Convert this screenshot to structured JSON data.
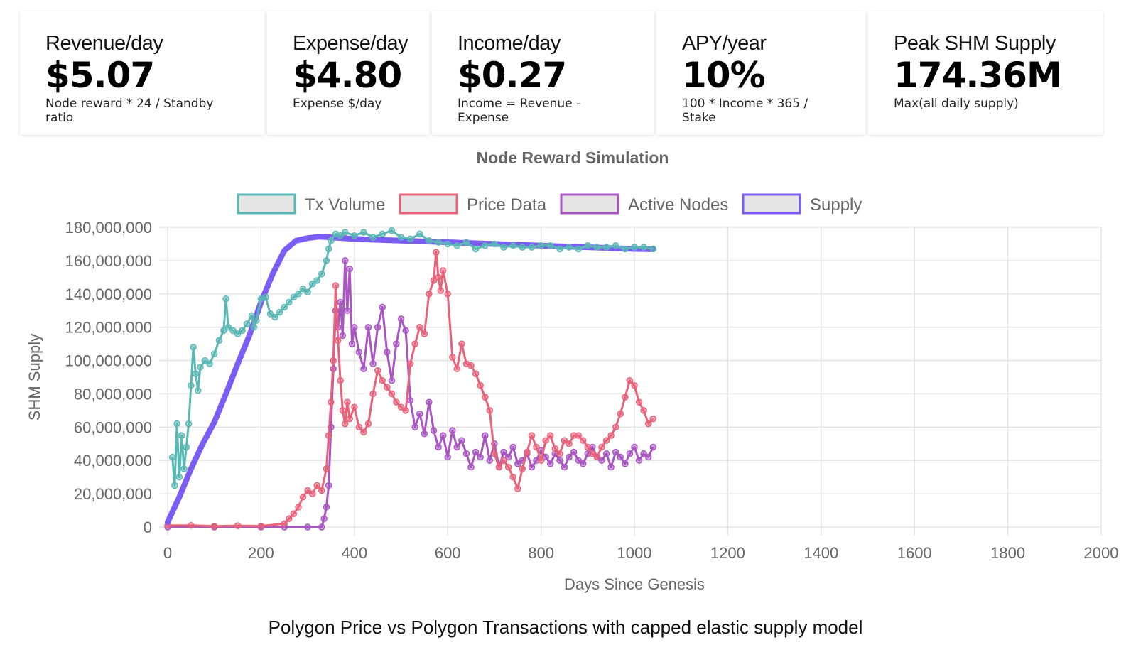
{
  "stats": [
    {
      "title": "Revenue/day",
      "value": "$5.07",
      "note": "Node reward * 24 / Standby ratio"
    },
    {
      "title": "Expense/day",
      "value": "$4.80",
      "note": "Expense $/day"
    },
    {
      "title": "Income/day",
      "value": "$0.27",
      "note": "Income = Revenue - Expense"
    },
    {
      "title": "APY/year",
      "value": "10%",
      "note": "100 * Income * 365 / Stake"
    },
    {
      "title": "Peak SHM Supply",
      "value": "174.36M",
      "note": "Max(all daily supply)"
    }
  ],
  "caption": "Polygon Price vs Polygon Transactions with capped elastic supply model",
  "colors": {
    "tx_volume": "#5ab8b4",
    "price_data": "#e8627a",
    "active_nodes": "#a956c2",
    "supply": "#7b5cf5",
    "grid": "#e2e2e2",
    "axis_text": "#666666"
  },
  "chart_data": {
    "type": "line",
    "title": "Node Reward Simulation",
    "xlabel": "Days Since Genesis",
    "ylabel": "SHM Supply",
    "xlim": [
      0,
      2000
    ],
    "ylim": [
      0,
      180000000
    ],
    "x_ticks": [
      0,
      200,
      400,
      600,
      800,
      1000,
      1200,
      1400,
      1600,
      1800,
      2000
    ],
    "x_tick_labels": [
      "0",
      "200",
      "400",
      "600",
      "800",
      "1000",
      "1200",
      "1400",
      "1600",
      "1800",
      "2000"
    ],
    "y_ticks": [
      0,
      20000000,
      40000000,
      60000000,
      80000000,
      100000000,
      120000000,
      140000000,
      160000000,
      180000000
    ],
    "y_tick_labels": [
      "0",
      "20,000,000",
      "40,000,000",
      "60,000,000",
      "80,000,000",
      "100,000,000",
      "120,000,000",
      "140,000,000",
      "160,000,000",
      "180,000,000"
    ],
    "grid": true,
    "legend_position": "top",
    "series": [
      {
        "name": "Tx Volume",
        "color_key": "tx_volume",
        "style": "line-markers",
        "x": [
          10,
          15,
          20,
          25,
          30,
          35,
          40,
          45,
          50,
          55,
          60,
          65,
          70,
          80,
          90,
          100,
          110,
          120,
          125,
          130,
          140,
          150,
          160,
          170,
          180,
          185,
          190,
          200,
          210,
          220,
          230,
          240,
          250,
          260,
          270,
          280,
          290,
          300,
          310,
          320,
          330,
          340,
          345,
          350,
          360,
          370,
          380,
          400,
          420,
          440,
          460,
          480,
          500,
          520,
          540,
          560,
          580,
          600,
          620,
          640,
          660,
          680,
          700,
          720,
          740,
          760,
          780,
          800,
          820,
          840,
          860,
          880,
          900,
          920,
          940,
          960,
          980,
          1000,
          1020,
          1040
        ],
        "y": [
          42000000,
          25000000,
          62000000,
          30000000,
          55000000,
          35000000,
          48000000,
          62000000,
          85000000,
          108000000,
          92000000,
          82000000,
          96000000,
          100000000,
          98000000,
          104000000,
          112000000,
          118000000,
          137000000,
          120000000,
          118000000,
          116000000,
          118000000,
          122000000,
          127000000,
          120000000,
          124000000,
          137000000,
          138000000,
          128000000,
          126000000,
          129000000,
          132000000,
          135000000,
          138000000,
          140000000,
          143000000,
          141000000,
          146000000,
          148000000,
          152000000,
          160000000,
          167000000,
          172000000,
          176000000,
          175000000,
          177000000,
          175000000,
          177000000,
          174000000,
          176000000,
          178000000,
          174000000,
          173000000,
          176000000,
          172000000,
          171000000,
          170000000,
          169000000,
          171000000,
          167000000,
          169000000,
          170000000,
          168000000,
          169000000,
          168000000,
          168000000,
          169000000,
          169000000,
          167000000,
          168000000,
          167000000,
          169000000,
          168000000,
          168000000,
          169000000,
          167000000,
          168000000,
          168000000,
          167000000
        ]
      },
      {
        "name": "Price Data",
        "color_key": "price_data",
        "style": "line-markers",
        "x": [
          0,
          50,
          100,
          150,
          200,
          250,
          260,
          270,
          280,
          290,
          300,
          310,
          320,
          330,
          340,
          345,
          350,
          355,
          360,
          365,
          370,
          375,
          380,
          385,
          390,
          400,
          410,
          420,
          430,
          440,
          450,
          460,
          470,
          480,
          490,
          500,
          510,
          520,
          530,
          540,
          550,
          560,
          570,
          575,
          580,
          585,
          590,
          600,
          610,
          620,
          630,
          640,
          650,
          660,
          670,
          680,
          690,
          700,
          710,
          720,
          730,
          740,
          750,
          760,
          770,
          780,
          790,
          800,
          810,
          820,
          830,
          840,
          850,
          860,
          870,
          880,
          890,
          900,
          910,
          920,
          930,
          940,
          950,
          960,
          970,
          980,
          990,
          1000,
          1010,
          1020,
          1030,
          1040
        ],
        "y": [
          1000000,
          1000000,
          500000,
          800000,
          600000,
          2000000,
          5000000,
          8000000,
          12000000,
          18000000,
          22000000,
          20000000,
          25000000,
          22000000,
          35000000,
          55000000,
          75000000,
          100000000,
          145000000,
          112000000,
          88000000,
          70000000,
          62000000,
          75000000,
          65000000,
          72000000,
          60000000,
          57000000,
          62000000,
          80000000,
          94000000,
          88000000,
          84000000,
          80000000,
          75000000,
          72000000,
          70000000,
          98000000,
          110000000,
          120000000,
          116000000,
          140000000,
          148000000,
          165000000,
          150000000,
          142000000,
          154000000,
          140000000,
          102000000,
          95000000,
          110000000,
          98000000,
          97000000,
          92000000,
          85000000,
          78000000,
          70000000,
          44000000,
          36000000,
          40000000,
          36000000,
          30000000,
          23000000,
          35000000,
          45000000,
          55000000,
          48000000,
          40000000,
          52000000,
          55000000,
          47000000,
          44000000,
          52000000,
          50000000,
          55000000,
          55000000,
          52000000,
          48000000,
          44000000,
          42000000,
          48000000,
          52000000,
          55000000,
          60000000,
          68000000,
          78000000,
          88000000,
          85000000,
          75000000,
          70000000,
          62000000,
          65000000
        ]
      },
      {
        "name": "Active Nodes",
        "color_key": "active_nodes",
        "style": "line-markers",
        "x": [
          0,
          100,
          200,
          250,
          300,
          330,
          335,
          340,
          345,
          350,
          355,
          360,
          365,
          370,
          375,
          380,
          385,
          390,
          395,
          400,
          410,
          420,
          430,
          440,
          450,
          460,
          470,
          480,
          490,
          500,
          510,
          520,
          530,
          540,
          550,
          560,
          570,
          580,
          590,
          600,
          610,
          620,
          630,
          640,
          650,
          660,
          670,
          680,
          690,
          700,
          710,
          720,
          730,
          740,
          750,
          760,
          770,
          780,
          790,
          800,
          810,
          820,
          830,
          840,
          850,
          860,
          870,
          880,
          890,
          900,
          910,
          920,
          930,
          940,
          950,
          960,
          970,
          980,
          990,
          1000,
          1010,
          1020,
          1030,
          1040
        ],
        "y": [
          0,
          0,
          0,
          0,
          0,
          0,
          5000000,
          12000000,
          25000000,
          60000000,
          95000000,
          130000000,
          120000000,
          135000000,
          115000000,
          160000000,
          130000000,
          155000000,
          110000000,
          120000000,
          105000000,
          95000000,
          120000000,
          98000000,
          120000000,
          132000000,
          105000000,
          88000000,
          110000000,
          125000000,
          118000000,
          76000000,
          60000000,
          68000000,
          56000000,
          75000000,
          58000000,
          48000000,
          55000000,
          42000000,
          58000000,
          48000000,
          52000000,
          44000000,
          36000000,
          45000000,
          42000000,
          55000000,
          40000000,
          50000000,
          36000000,
          45000000,
          42000000,
          48000000,
          38000000,
          40000000,
          44000000,
          36000000,
          40000000,
          46000000,
          42000000,
          38000000,
          44000000,
          40000000,
          36000000,
          42000000,
          45000000,
          40000000,
          38000000,
          44000000,
          48000000,
          42000000,
          40000000,
          44000000,
          36000000,
          45000000,
          42000000,
          38000000,
          44000000,
          48000000,
          40000000,
          44000000,
          42000000,
          48000000
        ]
      },
      {
        "name": "Supply",
        "color_key": "supply",
        "style": "thick-line",
        "x": [
          0,
          25,
          50,
          75,
          100,
          125,
          150,
          175,
          200,
          225,
          250,
          275,
          300,
          325,
          350,
          375,
          400,
          450,
          500,
          550,
          600,
          650,
          700,
          750,
          800,
          850,
          900,
          950,
          1000,
          1040
        ],
        "y": [
          3000000,
          18000000,
          35000000,
          50000000,
          63000000,
          80000000,
          98000000,
          115000000,
          135000000,
          152000000,
          166000000,
          172000000,
          173500000,
          174360000,
          174000000,
          173500000,
          173000000,
          172500000,
          172000000,
          171500000,
          171000000,
          170500000,
          170000000,
          169500000,
          169000000,
          168500000,
          168000000,
          167500000,
          167000000,
          166800000
        ]
      }
    ]
  }
}
